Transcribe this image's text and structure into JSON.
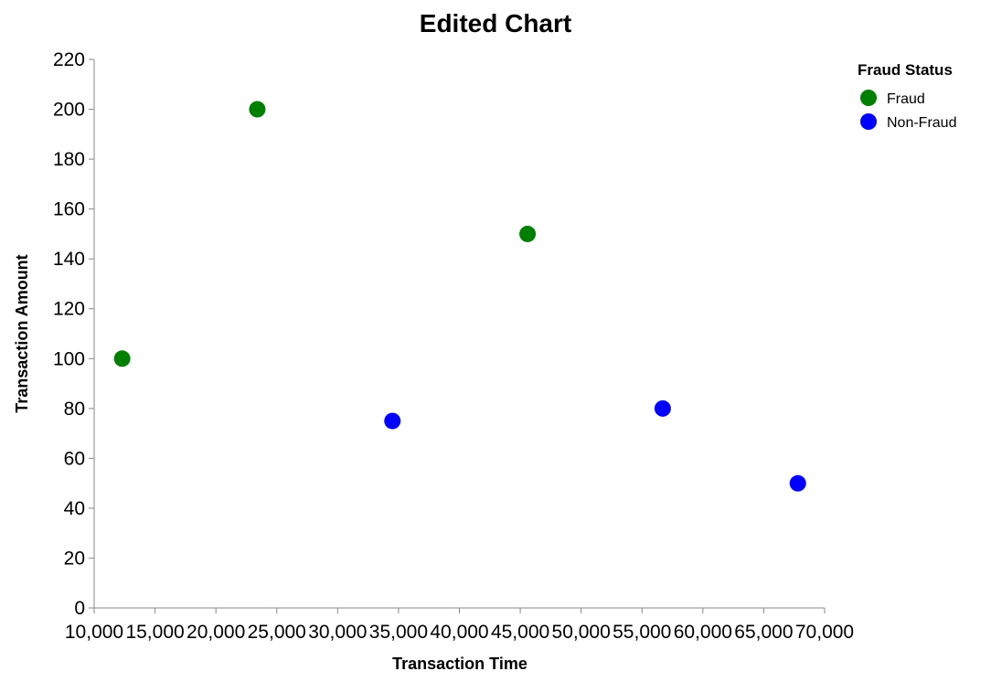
{
  "chart_data": {
    "type": "scatter",
    "title": "Edited Chart",
    "xlabel": "Transaction Time",
    "ylabel": "Transaction Amount",
    "xlim": [
      10000,
      70000
    ],
    "ylim": [
      0,
      220
    ],
    "x_ticks": [
      10000,
      15000,
      20000,
      25000,
      30000,
      35000,
      40000,
      45000,
      50000,
      55000,
      60000,
      65000,
      70000
    ],
    "x_tick_labels": [
      "10,000",
      "15,000",
      "20,000",
      "25,000",
      "30,000",
      "35,000",
      "40,000",
      "45,000",
      "50,000",
      "55,000",
      "60,000",
      "65,000",
      "70,000"
    ],
    "y_ticks": [
      0,
      20,
      40,
      60,
      80,
      100,
      120,
      140,
      160,
      180,
      200,
      220
    ],
    "y_tick_labels": [
      "0",
      "20",
      "40",
      "60",
      "80",
      "100",
      "120",
      "140",
      "160",
      "180",
      "200",
      "220"
    ],
    "grid": false,
    "legend": {
      "title": "Fraud Status",
      "placement": "top-right",
      "entries": [
        {
          "label": "Fraud",
          "color": "#008000"
        },
        {
          "label": "Non-Fraud",
          "color": "#0000ff"
        }
      ]
    },
    "series": [
      {
        "name": "Fraud",
        "color": "#008000",
        "points": [
          {
            "x": 12300,
            "y": 100
          },
          {
            "x": 23400,
            "y": 200
          },
          {
            "x": 45600,
            "y": 150
          }
        ]
      },
      {
        "name": "Non-Fraud",
        "color": "#0000ff",
        "points": [
          {
            "x": 34500,
            "y": 75
          },
          {
            "x": 56700,
            "y": 80
          },
          {
            "x": 67800,
            "y": 50
          }
        ]
      }
    ]
  }
}
